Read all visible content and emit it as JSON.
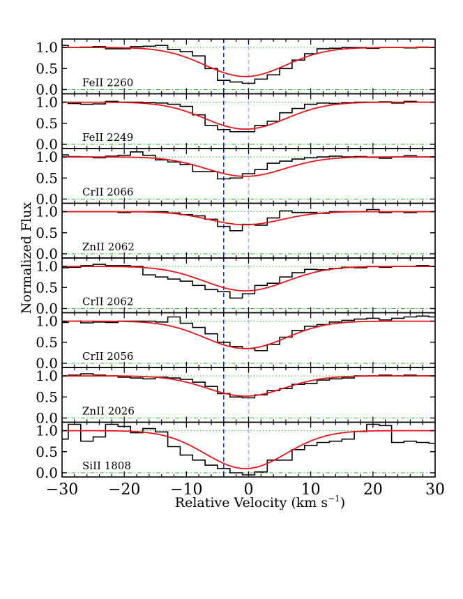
{
  "chart_data": {
    "type": "line",
    "xlabel": "Relative Velocity (km s",
    "xlabel_sup": "−1",
    "xlabel_close": ")",
    "ylabel": "Normalized Flux",
    "xlim": [
      -30,
      30
    ],
    "ylim": [
      -0.1,
      1.2
    ],
    "x_ticks": [
      -30,
      -20,
      -10,
      0,
      10,
      20,
      30
    ],
    "x_tick_labels": [
      "−30",
      "−20",
      "−10",
      "0",
      "10",
      "20",
      "30"
    ],
    "y_ticks": [
      0.0,
      0.5,
      1.0
    ],
    "y_tick_labels": [
      "0.0",
      "0.5",
      "1.0"
    ],
    "reference_lines": {
      "continuum": 1.0,
      "zero": 0.0
    },
    "velocity_markers": [
      {
        "name": "component",
        "velocity": -4,
        "color": "#1f2fdc",
        "style": "dashed"
      },
      {
        "name": "systemic",
        "velocity": 0,
        "color": "#a9b4f0",
        "style": "dashed"
      }
    ],
    "colors": {
      "data": "#000000",
      "model": "#e8141a",
      "reference": "#22bb22"
    },
    "panels": [
      {
        "label": "FeII 2260",
        "model_depth": 0.69,
        "model_center": -0.5,
        "model_sigma": 6.5,
        "x": [
          -30,
          -28,
          -26,
          -24,
          -22,
          -20,
          -18,
          -16,
          -14,
          -12,
          -10,
          -8,
          -6,
          -4,
          -2,
          0,
          2,
          4,
          6,
          8,
          10,
          12,
          14,
          16,
          18,
          20,
          22,
          24,
          26,
          28,
          30
        ],
        "y": [
          1.05,
          1.0,
          1.01,
          1.02,
          0.97,
          0.97,
          1.02,
          1.03,
          1.05,
          0.95,
          0.9,
          0.8,
          0.5,
          0.22,
          0.18,
          0.15,
          0.25,
          0.35,
          0.5,
          0.7,
          0.85,
          0.97,
          0.98,
          1.0,
          1.0,
          0.98,
          1.0,
          1.0,
          0.99,
          1.01,
          1.0
        ]
      },
      {
        "label": "FeII 2249",
        "model_depth": 0.64,
        "model_center": -0.5,
        "model_sigma": 6.5,
        "x": [
          -30,
          -28,
          -26,
          -24,
          -22,
          -20,
          -18,
          -16,
          -14,
          -12,
          -10,
          -8,
          -6,
          -4,
          -2,
          0,
          2,
          4,
          6,
          8,
          10,
          12,
          14,
          16,
          18,
          20,
          22,
          24,
          26,
          28,
          30
        ],
        "y": [
          1.0,
          0.97,
          0.95,
          0.96,
          1.02,
          1.0,
          1.0,
          0.99,
          0.98,
          0.95,
          0.9,
          0.7,
          0.45,
          0.35,
          0.3,
          0.3,
          0.45,
          0.55,
          0.75,
          0.85,
          0.95,
          0.98,
          0.97,
          0.99,
          1.0,
          1.0,
          1.01,
          0.98,
          1.02,
          1.0,
          1.0
        ]
      },
      {
        "label": "CrII 2066",
        "model_depth": 0.46,
        "model_center": -0.5,
        "model_sigma": 6.3,
        "x": [
          -30,
          -28,
          -26,
          -24,
          -22,
          -20,
          -18,
          -16,
          -14,
          -12,
          -10,
          -8,
          -6,
          -4,
          -2,
          0,
          2,
          4,
          6,
          8,
          10,
          12,
          14,
          16,
          18,
          20,
          22,
          24,
          26,
          28,
          30
        ],
        "y": [
          1.05,
          1.01,
          1.0,
          0.98,
          1.02,
          1.04,
          1.12,
          1.04,
          0.93,
          0.88,
          0.82,
          0.65,
          0.65,
          0.48,
          0.5,
          0.6,
          0.7,
          0.85,
          0.9,
          0.95,
          0.98,
          1.0,
          1.02,
          1.0,
          1.01,
          0.99,
          0.97,
          1.0,
          1.03,
          1.0,
          1.0
        ]
      },
      {
        "label": "ZnII 2062",
        "model_depth": 0.31,
        "model_center": -0.5,
        "model_sigma": 5.8,
        "x": [
          -30,
          -28,
          -26,
          -24,
          -22,
          -20,
          -18,
          -16,
          -14,
          -12,
          -10,
          -8,
          -6,
          -4,
          -2,
          0,
          2,
          4,
          6,
          8,
          10,
          12,
          14,
          16,
          18,
          20,
          22,
          24,
          26,
          28,
          30
        ],
        "y": [
          1.0,
          1.0,
          1.0,
          1.0,
          1.0,
          0.98,
          1.0,
          1.0,
          1.0,
          0.97,
          0.93,
          0.9,
          0.82,
          0.65,
          0.55,
          0.7,
          0.68,
          0.85,
          1.02,
          0.98,
          0.98,
          0.96,
          1.0,
          1.0,
          1.0,
          1.05,
          0.98,
          1.0,
          0.98,
          1.0,
          1.0
        ]
      },
      {
        "label": "CrII 2062",
        "model_depth": 0.58,
        "model_center": -0.5,
        "model_sigma": 6.6,
        "x": [
          -30,
          -28,
          -26,
          -24,
          -22,
          -20,
          -18,
          -16,
          -14,
          -12,
          -10,
          -8,
          -6,
          -4,
          -2,
          0,
          2,
          4,
          6,
          8,
          10,
          12,
          14,
          16,
          18,
          20,
          22,
          24,
          26,
          28,
          30
        ],
        "y": [
          0.97,
          0.98,
          1.02,
          1.05,
          1.02,
          1.02,
          1.0,
          0.8,
          0.75,
          0.7,
          0.65,
          0.55,
          0.45,
          0.4,
          0.25,
          0.35,
          0.55,
          0.6,
          0.75,
          0.85,
          0.93,
          0.92,
          0.95,
          0.98,
          0.97,
          1.0,
          0.98,
          1.0,
          1.0,
          1.02,
          1.0
        ]
      },
      {
        "label": "CrII 2056",
        "model_depth": 0.65,
        "model_center": -0.5,
        "model_sigma": 6.5,
        "x": [
          -30,
          -28,
          -26,
          -24,
          -22,
          -20,
          -18,
          -16,
          -14,
          -12,
          -10,
          -8,
          -6,
          -4,
          -2,
          0,
          2,
          4,
          6,
          8,
          10,
          12,
          14,
          16,
          18,
          20,
          22,
          24,
          26,
          28,
          30
        ],
        "y": [
          0.97,
          1.0,
          0.96,
          0.98,
          0.97,
          1.0,
          1.0,
          1.0,
          0.98,
          1.1,
          0.95,
          0.85,
          0.7,
          0.5,
          0.4,
          0.35,
          0.3,
          0.45,
          0.62,
          0.78,
          0.88,
          0.92,
          0.98,
          1.02,
          1.05,
          1.07,
          1.03,
          1.07,
          1.1,
          1.12,
          1.1
        ]
      },
      {
        "label": "ZnII 2026",
        "model_depth": 0.48,
        "model_center": -0.5,
        "model_sigma": 6.2,
        "x": [
          -30,
          -28,
          -26,
          -24,
          -22,
          -20,
          -18,
          -16,
          -14,
          -12,
          -10,
          -8,
          -6,
          -4,
          -2,
          0,
          2,
          4,
          6,
          8,
          10,
          12,
          14,
          16,
          18,
          20,
          22,
          24,
          26,
          28,
          30
        ],
        "y": [
          1.0,
          1.02,
          1.05,
          1.02,
          1.0,
          0.97,
          0.95,
          0.93,
          0.97,
          0.95,
          0.92,
          0.85,
          0.75,
          0.58,
          0.5,
          0.48,
          0.55,
          0.65,
          0.7,
          0.8,
          0.82,
          0.9,
          0.93,
          0.95,
          1.0,
          1.0,
          1.02,
          1.0,
          1.02,
          1.0,
          1.0
        ]
      },
      {
        "label": "SiII 1808",
        "model_depth": 0.9,
        "model_center": -0.5,
        "model_sigma": 6.5,
        "x": [
          -30,
          -28,
          -26,
          -24,
          -22,
          -20,
          -18,
          -16,
          -14,
          -12,
          -10,
          -8,
          -6,
          -4,
          -2,
          0,
          2,
          4,
          6,
          8,
          10,
          12,
          14,
          16,
          18,
          20,
          22,
          24,
          26,
          28,
          30
        ],
        "y": [
          0.8,
          1.15,
          0.75,
          0.85,
          1.15,
          1.1,
          0.95,
          1.05,
          0.97,
          0.62,
          0.42,
          0.3,
          0.18,
          0.1,
          0.0,
          -0.05,
          0.02,
          0.3,
          0.3,
          0.55,
          0.65,
          0.72,
          0.75,
          0.8,
          0.98,
          1.15,
          1.12,
          0.72,
          0.75,
          0.72,
          0.7
        ]
      }
    ]
  }
}
